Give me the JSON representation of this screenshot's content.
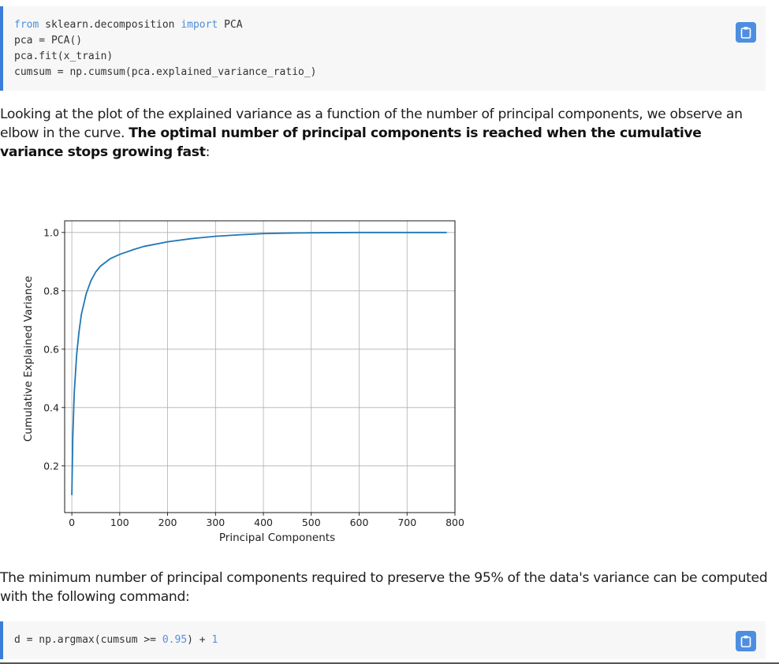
{
  "code1": {
    "lines": [
      [
        {
          "t": "from",
          "c": "kw"
        },
        {
          "t": " sklearn.decomposition ",
          "c": ""
        },
        {
          "t": "import",
          "c": "kw"
        },
        {
          "t": " PCA",
          "c": ""
        }
      ],
      [
        {
          "t": "pca = PCA()",
          "c": ""
        }
      ],
      [
        {
          "t": "pca.fit(x_train)",
          "c": ""
        }
      ],
      [
        {
          "t": "cumsum = np.cumsum(pca.explained_variance_ratio_)",
          "c": ""
        }
      ]
    ],
    "copy_icon": "clipboard-icon"
  },
  "para1": {
    "plain": "Looking at the plot of the explained variance as a function of the number of principal components, we observe an elbow in the curve. ",
    "bold": "The optimal number of principal components is reached when the cumulative variance stops growing fast",
    "tail": ":"
  },
  "chart_data": {
    "type": "line",
    "title": "",
    "xlabel": "Principal Components",
    "ylabel": "Cumulative Explained Variance",
    "xlim": [
      -15,
      800
    ],
    "ylim": [
      0.04,
      1.04
    ],
    "xticks": [
      0,
      100,
      200,
      300,
      400,
      500,
      600,
      700,
      800
    ],
    "yticks": [
      0.2,
      0.4,
      0.6,
      0.8,
      1.0
    ],
    "ytick_labels": [
      "0.2",
      "0.4",
      "0.6",
      "0.8",
      "1.0"
    ],
    "grid": true,
    "line_color": "#1f77b4",
    "series": [
      {
        "x": [
          0,
          2,
          5,
          10,
          15,
          20,
          30,
          40,
          50,
          60,
          80,
          100,
          130,
          150,
          200,
          250,
          300,
          350,
          400,
          450,
          500,
          600,
          700,
          783
        ],
        "y": [
          0.1,
          0.3,
          0.45,
          0.58,
          0.66,
          0.72,
          0.79,
          0.835,
          0.865,
          0.885,
          0.91,
          0.925,
          0.942,
          0.952,
          0.968,
          0.979,
          0.987,
          0.992,
          0.996,
          0.998,
          0.999,
          1.0,
          1.0,
          1.0
        ]
      }
    ]
  },
  "para2": {
    "text": "The minimum number of principal components required to preserve the 95% of the data's variance can be computed with the following command:"
  },
  "code2": {
    "lines": [
      [
        {
          "t": "d = np.argmax(cumsum >= ",
          "c": ""
        },
        {
          "t": "0.95",
          "c": "num"
        },
        {
          "t": ") + ",
          "c": ""
        },
        {
          "t": "1",
          "c": "num"
        }
      ]
    ],
    "copy_icon": "clipboard-icon"
  }
}
